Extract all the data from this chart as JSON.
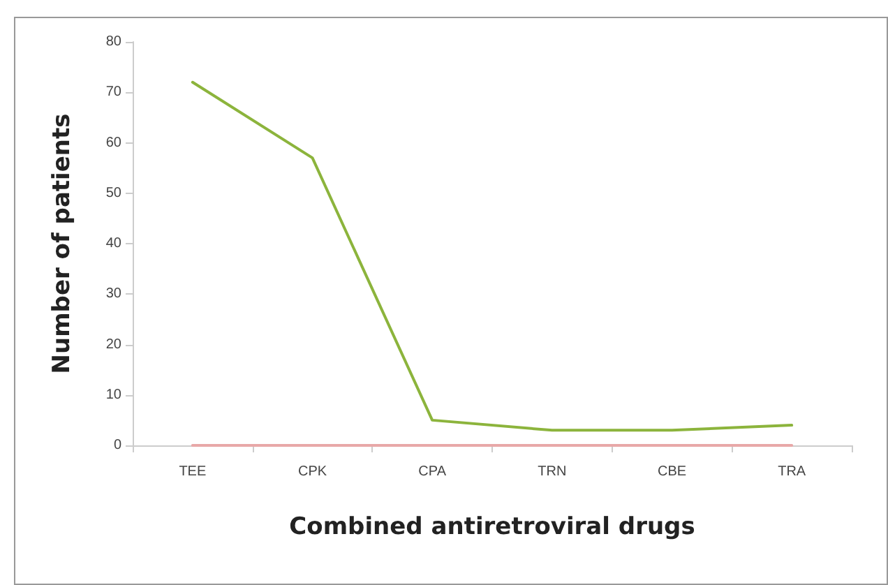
{
  "chart_data": {
    "type": "line",
    "xlabel": "Combined antiretroviral drugs",
    "ylabel": "Number of patients",
    "categories": [
      "TEE",
      "CPK",
      "CPA",
      "TRN",
      "CBE",
      "TRA"
    ],
    "series": [
      {
        "color": "#8cb43c",
        "values": [
          72,
          57,
          5,
          3,
          3,
          4
        ]
      },
      {
        "color": "#e8a8a8",
        "values": [
          0,
          0,
          0,
          0,
          0,
          0
        ]
      }
    ],
    "ylim": [
      0,
      80
    ],
    "yticks": [
      0,
      10,
      20,
      30,
      40,
      50,
      60,
      70,
      80
    ],
    "grid": false,
    "marker": "none",
    "line_style": "solid"
  }
}
